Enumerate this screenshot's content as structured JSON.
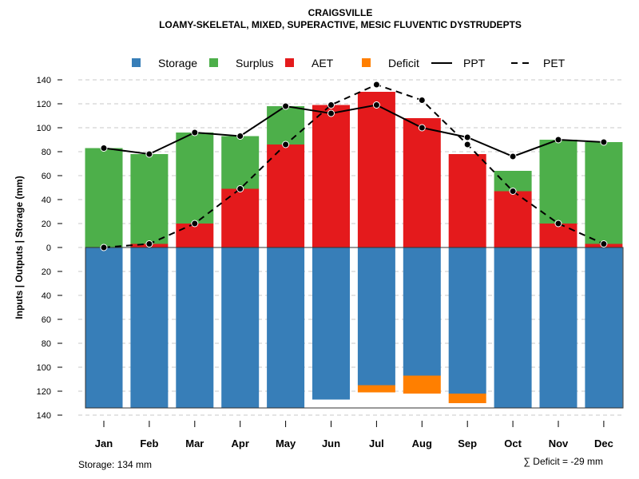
{
  "chart_data": {
    "type": "bar",
    "title": "CRAIGSVILLE",
    "subtitle": "LOAMY-SKELETAL, MIXED, SUPERACTIVE, MESIC FLUVENTIC DYSTRUDEPTS",
    "ylabel": "Inputs | Outputs | Storage    (mm)",
    "xlabel": "",
    "ylim": [
      -140,
      140
    ],
    "yticks": [
      140,
      120,
      100,
      80,
      60,
      40,
      20,
      0,
      -20,
      -40,
      -60,
      -80,
      -100,
      -120,
      -140
    ],
    "ytick_labels": [
      "140",
      "120",
      "100",
      "80",
      "60",
      "40",
      "20",
      "0",
      "20",
      "40",
      "60",
      "80",
      "100",
      "120",
      "140"
    ],
    "grid": true,
    "legend_position": "top",
    "categories": [
      "Jan",
      "Feb",
      "Mar",
      "Apr",
      "May",
      "Jun",
      "Jul",
      "Aug",
      "Sep",
      "Oct",
      "Nov",
      "Dec"
    ],
    "series": [
      {
        "name": "Storage",
        "kind": "bar",
        "color": "#377EB8",
        "values": [
          134,
          134,
          134,
          134,
          134,
          127,
          115,
          107,
          122,
          134,
          134,
          134
        ]
      },
      {
        "name": "Surplus",
        "kind": "bar",
        "color": "#4DAF4A",
        "values": [
          83,
          75,
          76,
          44,
          32,
          0,
          0,
          0,
          0,
          17,
          70,
          85
        ]
      },
      {
        "name": "AET",
        "kind": "bar",
        "color": "#E41A1C",
        "values": [
          0,
          3,
          20,
          49,
          86,
          119,
          130,
          108,
          78,
          47,
          20,
          3
        ]
      },
      {
        "name": "Deficit",
        "kind": "bar",
        "color": "#FF7F00",
        "values": [
          0,
          0,
          0,
          0,
          0,
          0,
          6,
          15,
          8,
          0,
          0,
          0
        ]
      },
      {
        "name": "PPT",
        "kind": "line",
        "style": "solid",
        "color": "#000000",
        "values": [
          83,
          78,
          96,
          93,
          118,
          112,
          119,
          100,
          92,
          76,
          90,
          88
        ]
      },
      {
        "name": "PET",
        "kind": "line",
        "style": "dashed",
        "color": "#000000",
        "values": [
          0,
          3,
          20,
          49,
          86,
          119,
          136,
          123,
          86,
          47,
          20,
          3
        ]
      }
    ],
    "annotations": {
      "storage": "Storage: 134 mm",
      "deficit": "∑ Deficit = -29 mm"
    }
  }
}
